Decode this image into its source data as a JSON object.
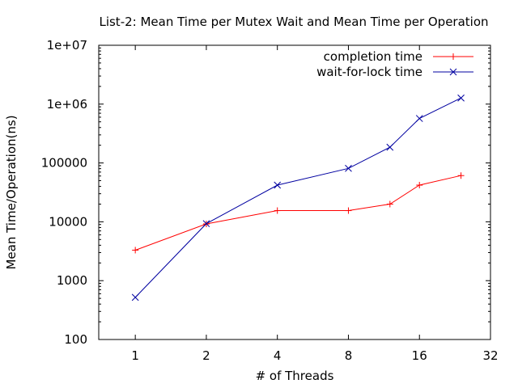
{
  "chart_data": {
    "type": "line",
    "title": "List-2: Mean Time per Mutex Wait and Mean Time per Operation",
    "xlabel": "# of Threads",
    "ylabel": "Mean Time/Operation(ns)",
    "x_scale": "log2",
    "y_scale": "log10",
    "xlim": [
      0.7,
      32
    ],
    "ylim": [
      100,
      10000000
    ],
    "x_ticks": [
      1,
      2,
      4,
      8,
      16,
      32
    ],
    "x_tick_labels": [
      "1",
      "2",
      "4",
      "8",
      "16",
      "32"
    ],
    "y_ticks": [
      100,
      1000,
      10000,
      100000,
      1000000,
      10000000
    ],
    "y_tick_labels": [
      "100",
      "1000",
      "10000",
      "100000",
      "1e+06",
      "1e+07"
    ],
    "grid": false,
    "legend_position": "top-right",
    "series": [
      {
        "name": "completion time",
        "color": "#ff0000",
        "marker": "plus",
        "x": [
          1,
          2,
          4,
          8,
          12,
          16,
          24
        ],
        "values": [
          3300,
          9200,
          15500,
          15500,
          20000,
          42000,
          61000
        ]
      },
      {
        "name": "wait-for-lock time",
        "color": "#0000a0",
        "marker": "cross",
        "x": [
          1,
          2,
          4,
          8,
          12,
          16,
          24
        ],
        "values": [
          520,
          9300,
          42000,
          81000,
          185000,
          570000,
          1270000
        ]
      }
    ]
  }
}
